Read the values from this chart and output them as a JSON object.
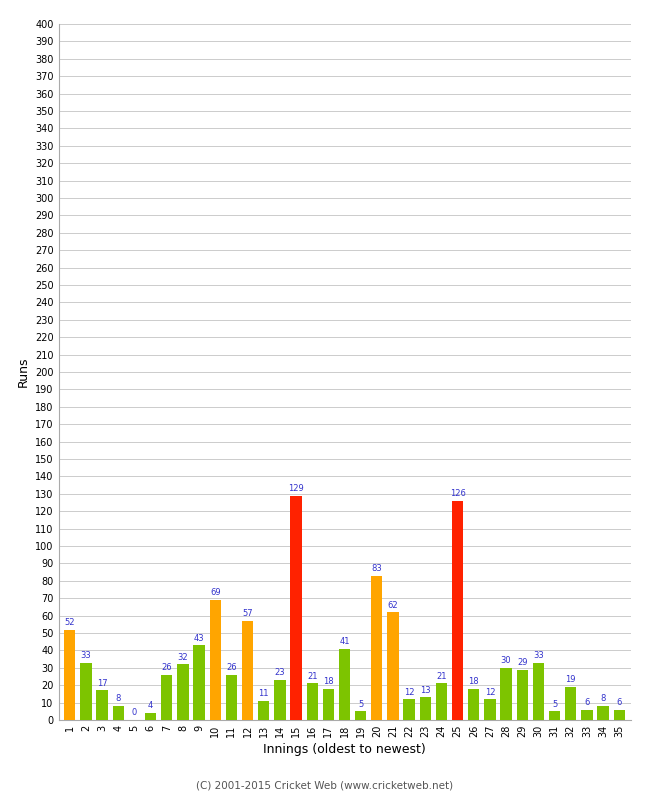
{
  "innings": [
    1,
    2,
    3,
    4,
    5,
    6,
    7,
    8,
    9,
    10,
    11,
    12,
    13,
    14,
    15,
    16,
    17,
    18,
    19,
    20,
    21,
    22,
    23,
    24,
    25,
    26,
    27,
    28,
    29,
    30,
    31,
    32,
    33,
    34,
    35
  ],
  "values": [
    52,
    33,
    17,
    8,
    0,
    4,
    26,
    32,
    43,
    69,
    26,
    57,
    11,
    23,
    129,
    21,
    18,
    41,
    5,
    83,
    62,
    12,
    13,
    21,
    126,
    18,
    12,
    30,
    29,
    33,
    5,
    19,
    6,
    8,
    6
  ],
  "colors": [
    "orange",
    "green",
    "green",
    "green",
    "green",
    "green",
    "green",
    "green",
    "green",
    "orange",
    "green",
    "orange",
    "green",
    "green",
    "red",
    "green",
    "green",
    "green",
    "green",
    "orange",
    "orange",
    "green",
    "green",
    "green",
    "red",
    "green",
    "green",
    "green",
    "green",
    "green",
    "green",
    "green",
    "green",
    "green",
    "green"
  ],
  "bar_color_orange": "#FFA500",
  "bar_color_green": "#7DC400",
  "bar_color_red": "#FF2200",
  "label_color": "#3333CC",
  "ylabel": "Runs",
  "xlabel": "Innings (oldest to newest)",
  "ylim": [
    0,
    400
  ],
  "yticks": [
    0,
    10,
    20,
    30,
    40,
    50,
    60,
    70,
    80,
    90,
    100,
    110,
    120,
    130,
    140,
    150,
    160,
    170,
    180,
    190,
    200,
    210,
    220,
    230,
    240,
    250,
    260,
    270,
    280,
    290,
    300,
    310,
    320,
    330,
    340,
    350,
    360,
    370,
    380,
    390,
    400
  ],
  "footer": "(C) 2001-2015 Cricket Web (www.cricketweb.net)",
  "background_color": "#ffffff",
  "grid_color": "#cccccc"
}
